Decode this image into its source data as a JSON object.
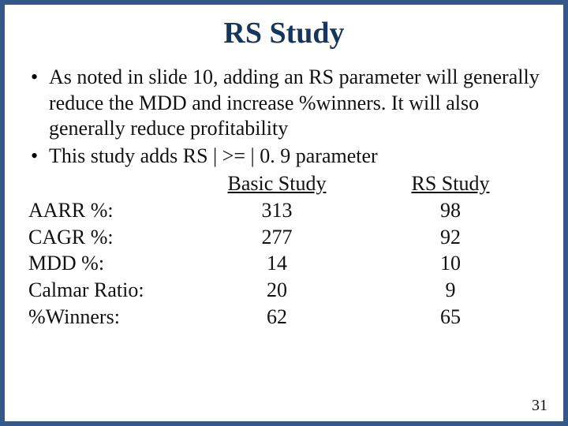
{
  "title": "RS Study",
  "bullets": [
    "As noted in slide 10, adding an RS parameter will generally reduce the MDD and increase %winners. It will also generally reduce profitability",
    "This study adds RS | >= | 0. 9 parameter"
  ],
  "table": {
    "headers": {
      "a": "Basic Study",
      "b": "RS Study"
    },
    "rows": [
      {
        "label": "AARR %:",
        "a": "313",
        "b": "98"
      },
      {
        "label": "CAGR %:",
        "a": "277",
        "b": "92"
      },
      {
        "label": "MDD %:",
        "a": "14",
        "b": "10"
      },
      {
        "label": "Calmar Ratio:",
        "a": "20",
        "b": "9"
      },
      {
        "label": "%Winners:",
        "a": "62",
        "b": "65"
      }
    ]
  },
  "page_number": "31",
  "colors": {
    "background": "#35588a",
    "panel": "#ffffff",
    "title": "#17365d",
    "text": "#111111"
  }
}
